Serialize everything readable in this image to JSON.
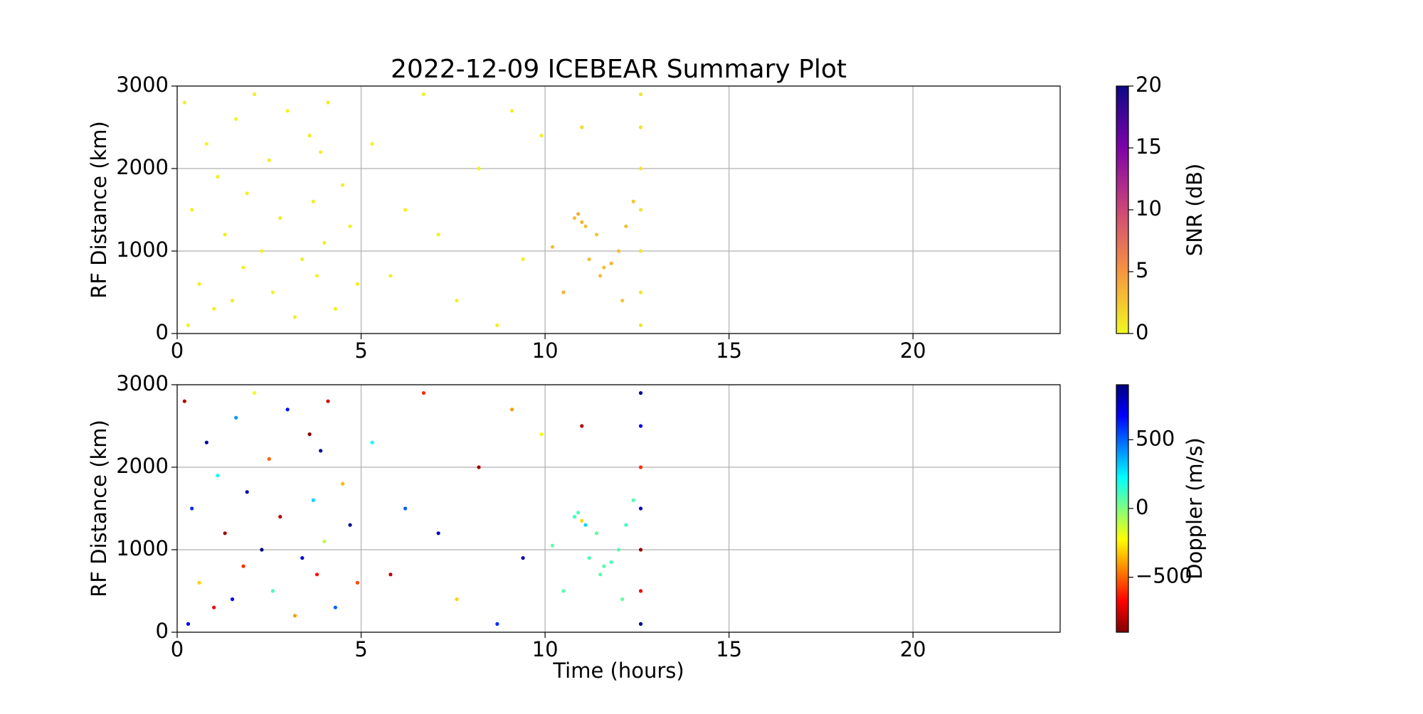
{
  "chart_data": [
    {
      "type": "scatter",
      "title": "2022-12-09 ICEBEAR Summary Plot",
      "ylabel": "RF Distance (km)",
      "x": [
        0.2,
        0.4,
        0.6,
        0.8,
        1.0,
        1.1,
        1.3,
        1.5,
        1.6,
        1.8,
        1.9,
        2.1,
        2.3,
        2.5,
        2.6,
        2.8,
        3.0,
        3.2,
        3.4,
        3.6,
        3.7,
        3.8,
        3.9,
        4.0,
        4.1,
        4.3,
        4.5,
        4.7,
        4.9,
        0.3,
        5.3,
        5.8,
        6.2,
        6.7,
        7.1,
        7.6,
        8.2,
        8.7,
        9.1,
        9.4,
        9.9,
        10.2,
        10.5,
        10.8,
        10.9,
        11.0,
        11.1,
        11.2,
        11.4,
        11.6,
        11.8,
        12.0,
        12.2,
        12.4,
        11.0,
        11.5,
        12.1,
        12.6,
        12.6,
        12.6,
        12.6,
        12.6,
        12.6,
        12.6
      ],
      "values": [
        2800,
        1500,
        600,
        2300,
        300,
        1900,
        1200,
        400,
        2600,
        800,
        1700,
        2900,
        1000,
        2100,
        500,
        1400,
        2700,
        200,
        900,
        2400,
        1600,
        700,
        2200,
        1100,
        2800,
        300,
        1800,
        1300,
        600,
        100,
        2300,
        700,
        1500,
        2900,
        1200,
        400,
        2000,
        100,
        2700,
        900,
        2400,
        1050,
        500,
        1400,
        1450,
        1350,
        1300,
        900,
        1200,
        800,
        850,
        1000,
        1300,
        1600,
        2500,
        700,
        400,
        100,
        500,
        1000,
        1500,
        2000,
        2500,
        2900
      ],
      "color_values": [
        0.5,
        0.4,
        0.6,
        0.3,
        0.5,
        0.4,
        0.6,
        0.5,
        0.3,
        0.4,
        0.5,
        0.6,
        0.4,
        0.5,
        0.3,
        0.6,
        0.4,
        0.5,
        0.4,
        0.6,
        0.5,
        0.3,
        0.4,
        0.5,
        0.6,
        0.4,
        0.5,
        0.3,
        0.5,
        0.4,
        0.4,
        0.4,
        0.4,
        0.4,
        0.4,
        0.4,
        0.4,
        0.4,
        0.4,
        0.4,
        0.4,
        3,
        3.5,
        3,
        4,
        3.5,
        3,
        3,
        2.5,
        3,
        3.5,
        3,
        3,
        2.5,
        1.5,
        3,
        2.5,
        1,
        1,
        1,
        1,
        1,
        1,
        1
      ],
      "xlim": [
        0,
        24
      ],
      "xticks": [
        0,
        5,
        10,
        15,
        20
      ],
      "ylim": [
        0,
        3000
      ],
      "yticks": [
        0,
        1000,
        2000,
        3000
      ],
      "grid": true,
      "colorbar": {
        "label": "SNR (dB)",
        "colormap": "plasma_r",
        "lim": [
          0,
          20
        ],
        "ticks": [
          0,
          5,
          10,
          15,
          20
        ]
      }
    },
    {
      "type": "scatter",
      "ylabel": "RF Distance (km)",
      "xlabel": "Time (hours)",
      "x": [
        0.2,
        0.4,
        0.6,
        0.8,
        1.0,
        1.1,
        1.3,
        1.5,
        1.6,
        1.8,
        1.9,
        2.1,
        2.3,
        2.5,
        2.6,
        2.8,
        3.0,
        3.2,
        3.4,
        3.6,
        3.7,
        3.8,
        3.9,
        4.0,
        4.1,
        4.3,
        4.5,
        4.7,
        4.9,
        0.3,
        5.3,
        5.8,
        6.2,
        6.7,
        7.1,
        7.6,
        8.2,
        8.7,
        9.1,
        9.4,
        9.9,
        10.2,
        10.5,
        10.8,
        10.9,
        11.0,
        11.1,
        11.2,
        11.4,
        11.6,
        11.8,
        12.0,
        12.2,
        12.4,
        11.0,
        11.5,
        12.1,
        12.6,
        12.6,
        12.6,
        12.6,
        12.6,
        12.6,
        12.6
      ],
      "values": [
        2800,
        1500,
        600,
        2300,
        300,
        1900,
        1200,
        400,
        2600,
        800,
        1700,
        2900,
        1000,
        2100,
        500,
        1400,
        2700,
        200,
        900,
        2400,
        1600,
        700,
        2200,
        1100,
        2800,
        300,
        1800,
        1300,
        600,
        100,
        2300,
        700,
        1500,
        2900,
        1200,
        400,
        2000,
        100,
        2700,
        900,
        2400,
        1050,
        500,
        1400,
        1450,
        1350,
        1300,
        900,
        1200,
        800,
        850,
        1000,
        1300,
        1600,
        2500,
        700,
        400,
        100,
        500,
        1000,
        1500,
        2000,
        2500,
        2900
      ],
      "color_values": [
        -800,
        600,
        -300,
        850,
        -700,
        200,
        -850,
        700,
        400,
        -600,
        800,
        -200,
        900,
        -500,
        100,
        -800,
        650,
        -400,
        750,
        -900,
        300,
        -650,
        850,
        -100,
        -750,
        500,
        -350,
        880,
        -550,
        700,
        200,
        -800,
        500,
        -600,
        800,
        -300,
        -850,
        600,
        -400,
        850,
        -200,
        50,
        80,
        120,
        100,
        -300,
        300,
        90,
        60,
        70,
        100,
        80,
        110,
        90,
        -800,
        70,
        60,
        850,
        -700,
        -850,
        800,
        -600,
        700,
        850
      ],
      "xlim": [
        0,
        24
      ],
      "xticks": [
        0,
        5,
        10,
        15,
        20
      ],
      "ylim": [
        0,
        3000
      ],
      "yticks": [
        0,
        1000,
        2000,
        3000
      ],
      "grid": true,
      "colorbar": {
        "label": "Doppler (m/s)",
        "colormap": "jet_r",
        "lim": [
          -900,
          900
        ],
        "ticks": [
          {
            "value": -500,
            "label": "−500"
          },
          0,
          500
        ]
      }
    }
  ]
}
